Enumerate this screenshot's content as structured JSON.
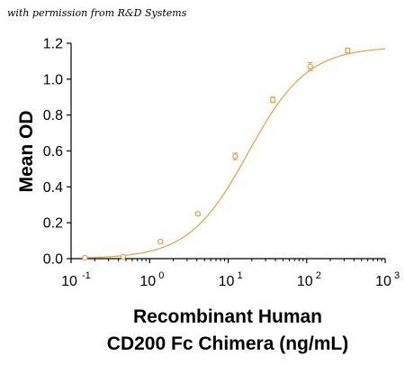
{
  "credit": "with permission from R&D Systems",
  "chart_data": {
    "type": "scatter",
    "title": "",
    "ylabel": "Mean OD",
    "xlabel_lines": [
      "Recombinant Human",
      "CD200 Fc Chimera (ng/mL)"
    ],
    "x_scale": "log",
    "xlim": [
      0.1,
      1000
    ],
    "ylim": [
      0,
      1.2
    ],
    "y_ticks": [
      "0.0",
      "0.2",
      "0.4",
      "0.6",
      "0.8",
      "1.0",
      "1.2"
    ],
    "x_ticks": [
      {
        "base": "10",
        "exp": "-1"
      },
      {
        "base": "10",
        "exp": "0"
      },
      {
        "base": "10",
        "exp": "1"
      },
      {
        "base": "10",
        "exp": "2"
      },
      {
        "base": "10",
        "exp": "3"
      }
    ],
    "grid": false,
    "series": [
      {
        "x": [
          0.15,
          0.46,
          1.37,
          4.1,
          12.3,
          37,
          111,
          333
        ],
        "y": [
          0.005,
          0.01,
          0.095,
          0.25,
          0.57,
          0.885,
          1.07,
          1.16
        ],
        "error": [
          0.008,
          0.006,
          0.008,
          0.01,
          0.018,
          0.015,
          0.022,
          0.012
        ]
      }
    ],
    "fit_curve": {
      "bottom": 0.0,
      "top": 1.18,
      "ec50": 18,
      "hill": 1.15
    },
    "colors": {
      "series": "#E8A238",
      "curve": "#E8A238",
      "axis": "#000000"
    }
  }
}
